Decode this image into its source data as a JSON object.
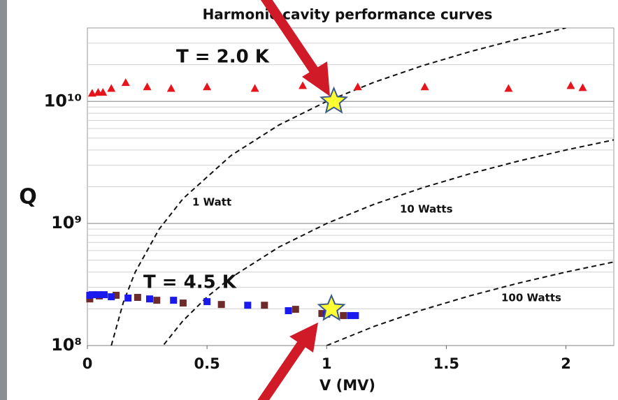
{
  "chart_data": {
    "type": "scatter",
    "title": "Harmonic cavity performance curves",
    "xlabel": "V (MV)",
    "ylabel": "Q",
    "log_y": true,
    "grid": true,
    "xlim": [
      0,
      2.2
    ],
    "ylim": [
      100000000,
      40000000000
    ],
    "xticks": [
      0,
      0.5,
      1,
      1.5,
      2
    ],
    "yticks": [
      {
        "value": 100000000,
        "label": "10⁸"
      },
      {
        "value": 1000000000,
        "label": "10⁹"
      },
      {
        "value": 10000000000,
        "label": "10¹⁰"
      }
    ],
    "series": [
      {
        "name": "T = 2.0 K",
        "color": "#e8141c",
        "marker": "triangle",
        "x": [
          0.02,
          0.045,
          0.065,
          0.1,
          0.16,
          0.25,
          0.35,
          0.5,
          0.7,
          0.9,
          1.13,
          1.41,
          1.76,
          2.02,
          2.07
        ],
        "values": [
          11700000000.0,
          11900000000.0,
          11900000000.0,
          12800000000.0,
          14300000000.0,
          13200000000.0,
          12800000000.0,
          13200000000.0,
          12800000000.0,
          13500000000.0,
          13200000000.0,
          13200000000.0,
          12800000000.0,
          13500000000.0,
          13000000000.0
        ]
      },
      {
        "name": "T = 4.5 K",
        "color": "#1a1aee",
        "marker": "square",
        "x": [
          0.01,
          0.02,
          0.045,
          0.07,
          0.1,
          0.17,
          0.26,
          0.36,
          0.5,
          0.67,
          0.84,
          1.0,
          1.1,
          1.12
        ],
        "values": [
          258000000.0,
          261000000.0,
          261000000.0,
          261000000.0,
          251000000.0,
          245000000.0,
          241000000.0,
          235000000.0,
          229000000.0,
          214000000.0,
          193000000.0,
          181000000.0,
          176000000.0,
          176000000.0
        ]
      },
      {
        "color": "#6e2b2b",
        "marker": "square",
        "x": [
          0.01,
          0.05,
          0.12,
          0.21,
          0.29,
          0.4,
          0.56,
          0.74,
          0.87,
          0.98,
          1.07
        ],
        "values": [
          241000000.0,
          255000000.0,
          258000000.0,
          248000000.0,
          235000000.0,
          223000000.0,
          217000000.0,
          214000000.0,
          198000000.0,
          183000000.0,
          176000000.0
        ]
      },
      {
        "color": "#ffff33",
        "marker": "star",
        "x": [
          1.03,
          1.02
        ],
        "values": [
          10000000000.0,
          200000000.0
        ]
      }
    ],
    "curves": [
      {
        "name": "1 Watt",
        "color": "#111111",
        "x": [
          0.1,
          0.15,
          0.2,
          0.3,
          0.4,
          0.6,
          0.8,
          1.0,
          1.2,
          1.4,
          1.6,
          1.8,
          2.0
        ],
        "values": [
          100000000.0,
          225000000.0,
          400000000.0,
          900000000.0,
          1600000000.0,
          3600000000.0,
          6400000000.0,
          10000000000.0,
          14400000000.0,
          19600000000.0,
          25600000000.0,
          32400000000.0,
          40000000000.0
        ]
      },
      {
        "name": "10 Watts",
        "color": "#111111",
        "x": [
          0.32,
          0.4,
          0.5,
          0.6,
          0.8,
          1.0,
          1.2,
          1.4,
          1.6,
          1.8,
          2.0,
          2.2
        ],
        "values": [
          102000000.0,
          160000000.0,
          250000000.0,
          360000000.0,
          640000000.0,
          1000000000.0,
          1440000000.0,
          1960000000.0,
          2560000000.0,
          3240000000.0,
          4000000000.0,
          4840000000.0
        ]
      },
      {
        "name": "100 Watts",
        "color": "#111111",
        "x": [
          1.0,
          1.2,
          1.4,
          1.6,
          1.8,
          2.0,
          2.2
        ],
        "values": [
          100000000.0,
          144000000.0,
          196000000.0,
          256000000.0,
          324000000.0,
          400000000.0,
          484000000.0
        ]
      }
    ]
  }
}
